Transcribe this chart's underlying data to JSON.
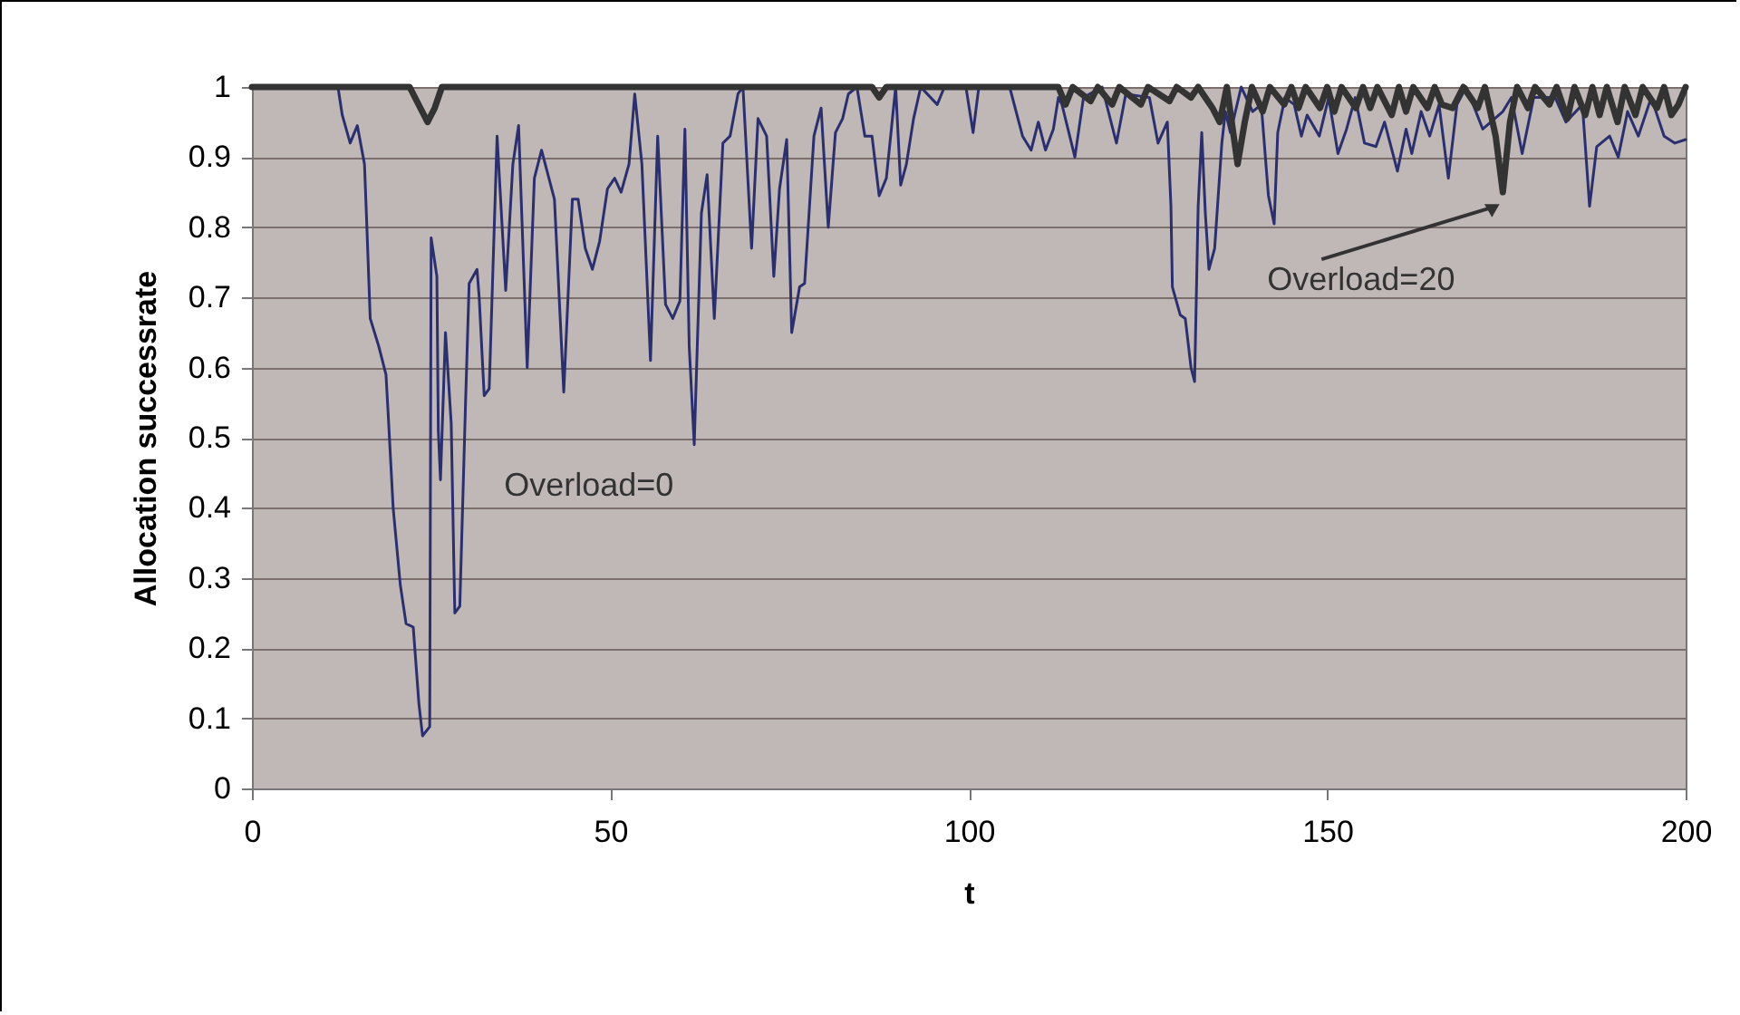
{
  "chart_data": {
    "type": "line",
    "xlabel": "t",
    "ylabel": "Allocation successrate",
    "xlim": [
      0,
      200
    ],
    "xticks": [
      0,
      50,
      100,
      150,
      200
    ],
    "ylim": [
      0,
      1
    ],
    "yticks": [
      0,
      0.1,
      0.2,
      0.3,
      0.4,
      0.5,
      0.6,
      0.7,
      0.8,
      0.9,
      1
    ],
    "grid": "y",
    "legend": false,
    "marker": "none",
    "line_style": "solid",
    "series": [
      {
        "name": "Overload=0",
        "color": "#2b2f6e",
        "x": [
          0,
          12,
          12.6,
          13.7,
          14.7,
          15.7,
          16,
          16.5,
          17.7,
          18.7,
          19,
          19.7,
          20.7,
          21.5,
          22.5,
          23.3,
          23.8,
          24.8,
          25,
          25.8,
          26,
          26.3,
          27,
          27.8,
          28.3,
          29,
          29.8,
          30.3,
          31.4,
          31.7,
          32.4,
          33.1,
          34.2,
          35.4,
          36.4,
          37.2,
          38.4,
          39.4,
          40.4,
          42.2,
          43.5,
          44.7,
          45.5,
          46.5,
          47.5,
          48.5,
          49.6,
          50.6,
          51.5,
          52.6,
          53.4,
          54.4,
          55.6,
          56.6,
          57.7,
          58.7,
          59.7,
          60.4,
          61,
          61.7,
          62.7,
          63.5,
          64.5,
          65.7,
          66.7,
          67.8,
          68.5,
          69.7,
          70.6,
          71.8,
          72.8,
          73.6,
          74.6,
          75.3,
          76.4,
          77.1,
          78.4,
          79.4,
          80.4,
          81.4,
          82.4,
          83.2,
          84.4,
          85.5,
          86.5,
          87.5,
          88.5,
          89.8,
          90.5,
          91.3,
          92.3,
          93.3,
          95.6,
          96.6,
          99.6,
          100.6,
          101.4,
          105.7,
          107.5,
          108.7,
          109.7,
          110.7,
          111.8,
          112.5,
          113,
          114.8,
          116,
          118.6,
          120.6,
          121.9,
          125.2,
          126.4,
          127.7,
          128.2,
          128.4,
          129.5,
          130.2,
          131,
          131.5,
          132,
          132.5,
          133,
          133.5,
          134.3,
          135.3,
          135.8,
          136.5,
          138,
          139.6,
          140.8,
          141.8,
          142.6,
          143.1,
          144.1,
          145.4,
          146.4,
          147.2,
          148.9,
          150.2,
          151.5,
          152.7,
          153.9,
          155.2,
          156.8,
          158,
          159.8,
          161,
          161.8,
          163.1,
          164.3,
          165.6,
          166.9,
          168.1,
          169.4,
          171.7,
          174.5,
          175.7,
          177.2,
          178.8,
          181.8,
          183.3,
          185.6,
          186.6,
          187.6,
          189.4,
          190.6,
          191.9,
          193.4,
          195.2,
          197,
          198.5,
          200
        ],
        "values": [
          1,
          1,
          0.96,
          0.92,
          0.945,
          0.89,
          0.81,
          0.67,
          0.63,
          0.59,
          0.535,
          0.4,
          0.29,
          0.235,
          0.23,
          0.12,
          0.075,
          0.088,
          0.785,
          0.73,
          0.51,
          0.44,
          0.65,
          0.52,
          0.25,
          0.26,
          0.55,
          0.72,
          0.74,
          0.7,
          0.56,
          0.57,
          0.93,
          0.71,
          0.89,
          0.945,
          0.6,
          0.87,
          0.91,
          0.84,
          0.565,
          0.84,
          0.84,
          0.77,
          0.74,
          0.78,
          0.855,
          0.87,
          0.85,
          0.89,
          0.99,
          0.89,
          0.61,
          0.93,
          0.69,
          0.67,
          0.695,
          0.94,
          0.63,
          0.49,
          0.82,
          0.875,
          0.67,
          0.92,
          0.93,
          0.99,
          1,
          0.77,
          0.955,
          0.93,
          0.73,
          0.855,
          0.925,
          0.65,
          0.715,
          0.72,
          0.93,
          0.97,
          0.8,
          0.935,
          0.955,
          0.99,
          1,
          0.93,
          0.93,
          0.845,
          0.87,
          1,
          0.86,
          0.89,
          0.955,
          1,
          0.975,
          1,
          1,
          0.935,
          1,
          1,
          0.93,
          0.91,
          0.95,
          0.91,
          0.94,
          0.985,
          0.975,
          0.9,
          0.985,
          1,
          0.92,
          0.99,
          0.985,
          0.92,
          0.95,
          0.83,
          0.715,
          0.675,
          0.67,
          0.6,
          0.58,
          0.83,
          0.935,
          0.82,
          0.74,
          0.77,
          0.92,
          0.965,
          0.935,
          1,
          0.965,
          0.975,
          0.845,
          0.805,
          0.935,
          0.985,
          0.975,
          0.93,
          0.96,
          0.93,
          0.985,
          0.905,
          0.94,
          0.985,
          0.92,
          0.915,
          0.95,
          0.88,
          0.94,
          0.905,
          0.965,
          0.93,
          0.975,
          0.87,
          0.975,
          1,
          0.94,
          0.965,
          0.985,
          0.905,
          0.985,
          0.985,
          0.95,
          0.975,
          0.83,
          0.915,
          0.93,
          0.9,
          0.965,
          0.93,
          0.985,
          0.93,
          0.92,
          0.925
        ]
      },
      {
        "name": "Overload=20",
        "color": "#333333",
        "x": [
          0,
          22,
          23.5,
          24.5,
          25.5,
          26.5,
          86.5,
          87.5,
          88.5,
          112.5,
          113.5,
          114.5,
          117,
          118,
          120,
          121,
          124,
          125,
          128,
          129,
          131,
          132,
          134,
          135,
          136,
          137.5,
          138.5,
          139.5,
          141,
          142,
          144,
          145,
          146,
          147,
          149,
          150,
          151,
          152,
          154,
          155,
          156,
          157,
          159,
          160,
          161,
          162,
          164,
          165,
          166,
          167.5,
          169,
          171,
          172,
          173.5,
          174.5,
          175.5,
          176.5,
          178,
          179,
          181,
          182,
          183.5,
          184.5,
          186,
          187,
          188,
          189,
          190.5,
          191.5,
          193,
          194,
          196,
          197,
          198,
          199,
          200
        ],
        "values": [
          1,
          1,
          0.97,
          0.95,
          0.97,
          1,
          1,
          0.985,
          1,
          1,
          0.975,
          1,
          0.98,
          1,
          0.975,
          1,
          0.975,
          1,
          0.98,
          1,
          0.985,
          1,
          0.97,
          0.95,
          1,
          0.89,
          0.95,
          1,
          0.965,
          1,
          0.975,
          1,
          0.97,
          1,
          0.97,
          1,
          0.965,
          1,
          0.97,
          1,
          0.97,
          1,
          0.96,
          1,
          0.965,
          1,
          0.97,
          1,
          0.975,
          0.97,
          1,
          0.97,
          1,
          0.93,
          0.85,
          0.95,
          1,
          0.97,
          1,
          0.975,
          1,
          0.955,
          1,
          0.96,
          1,
          0.96,
          1,
          0.95,
          1,
          0.96,
          1,
          0.97,
          1,
          0.96,
          0.975,
          1
        ]
      }
    ]
  }
}
